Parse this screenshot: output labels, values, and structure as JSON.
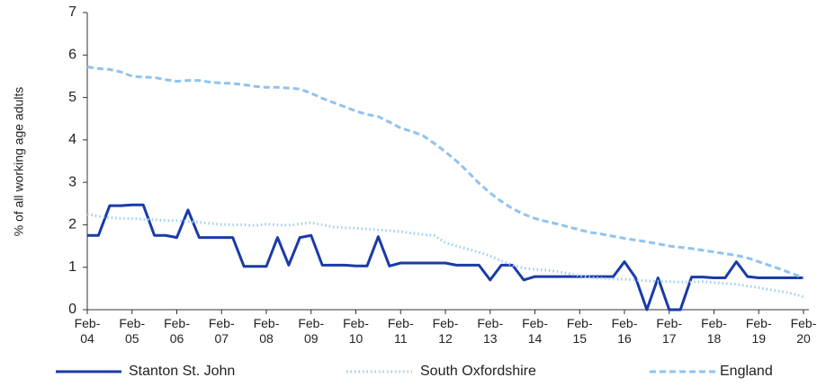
{
  "chart_data": {
    "type": "line",
    "y_label": "% of all working age adults",
    "categories": [
      "Feb-04",
      null,
      null,
      null,
      "Feb-05",
      null,
      null,
      null,
      "Feb-06",
      null,
      null,
      null,
      "Feb-07",
      null,
      null,
      null,
      "Feb-08",
      null,
      null,
      null,
      "Feb-09",
      null,
      null,
      null,
      "Feb-10",
      null,
      null,
      null,
      "Feb-11",
      null,
      null,
      null,
      "Feb-12",
      null,
      null,
      null,
      "Feb-13",
      null,
      null,
      null,
      "Feb-14",
      null,
      null,
      null,
      "Feb-15",
      null,
      null,
      null,
      "Feb-16",
      null,
      null,
      null,
      "Feb-17",
      null,
      null,
      null,
      "Feb-18",
      null,
      null,
      null,
      "Feb-19",
      null,
      null,
      null,
      "Feb-20"
    ],
    "series": [
      {
        "name": "Stanton St. John",
        "color": "#1a3aa8",
        "dash": "solid",
        "values": [
          1.75,
          1.75,
          2.45,
          2.45,
          2.47,
          2.47,
          1.75,
          1.75,
          1.7,
          2.35,
          1.7,
          1.7,
          1.7,
          1.7,
          1.02,
          1.02,
          1.02,
          1.7,
          1.05,
          1.7,
          1.75,
          1.05,
          1.05,
          1.05,
          1.03,
          1.03,
          1.72,
          1.03,
          1.1,
          1.1,
          1.1,
          1.1,
          1.1,
          1.05,
          1.05,
          1.05,
          0.7,
          1.05,
          1.05,
          0.7,
          0.78,
          0.78,
          0.78,
          0.78,
          0.78,
          0.78,
          0.78,
          0.78,
          1.13,
          0.75,
          0,
          0.75,
          0,
          0,
          0.77,
          0.77,
          0.75,
          0.75,
          1.13,
          0.78,
          0.75,
          0.75,
          0.75,
          0.75,
          0.75
        ]
      },
      {
        "name": "South Oxfordshire",
        "color": "#9fcdf0",
        "dash": "dotted",
        "values": [
          2.25,
          2.2,
          2.17,
          2.15,
          2.15,
          2.13,
          2.12,
          2.1,
          2.1,
          2.08,
          2.06,
          2.03,
          2.01,
          2.0,
          2.0,
          1.98,
          2.02,
          2.0,
          1.99,
          2.02,
          2.05,
          2.0,
          1.95,
          1.93,
          1.92,
          1.9,
          1.88,
          1.86,
          1.84,
          1.8,
          1.77,
          1.75,
          1.58,
          1.5,
          1.43,
          1.35,
          1.27,
          1.15,
          1.05,
          0.98,
          0.95,
          0.93,
          0.9,
          0.85,
          0.8,
          0.76,
          0.74,
          0.72,
          0.72,
          0.7,
          0.68,
          0.67,
          0.66,
          0.65,
          0.65,
          0.66,
          0.64,
          0.62,
          0.6,
          0.56,
          0.52,
          0.47,
          0.43,
          0.38,
          0.3
        ]
      },
      {
        "name": "England",
        "color": "#8fc3f0",
        "dash": "dashed",
        "values": [
          5.72,
          5.68,
          5.66,
          5.6,
          5.5,
          5.48,
          5.47,
          5.42,
          5.38,
          5.4,
          5.4,
          5.36,
          5.34,
          5.33,
          5.3,
          5.26,
          5.24,
          5.24,
          5.22,
          5.2,
          5.1,
          4.98,
          4.88,
          4.78,
          4.68,
          4.6,
          4.55,
          4.42,
          4.28,
          4.2,
          4.1,
          3.92,
          3.72,
          3.5,
          3.25,
          2.98,
          2.75,
          2.55,
          2.38,
          2.25,
          2.15,
          2.08,
          2.02,
          1.95,
          1.88,
          1.82,
          1.78,
          1.73,
          1.68,
          1.64,
          1.6,
          1.55,
          1.5,
          1.47,
          1.44,
          1.4,
          1.36,
          1.32,
          1.28,
          1.22,
          1.13,
          1.04,
          0.95,
          0.85,
          0.75
        ]
      }
    ],
    "ylim": [
      0,
      7
    ],
    "yticks": [
      0,
      1,
      2,
      3,
      4,
      5,
      6,
      7
    ],
    "grid": false,
    "legend": "bottom"
  }
}
